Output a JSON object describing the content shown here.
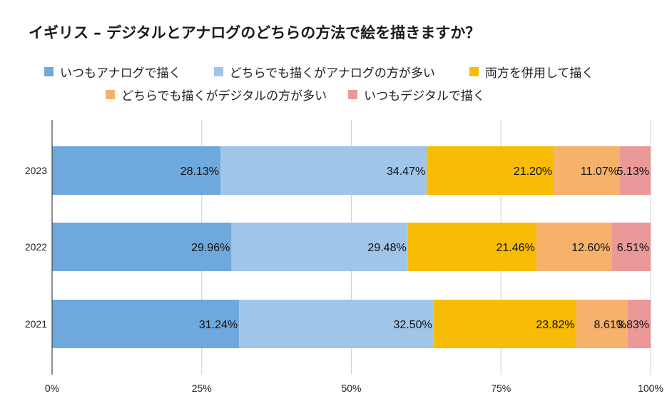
{
  "chart_data": {
    "type": "bar",
    "orientation": "horizontal",
    "stacked": "percent",
    "title": "イギリス – デジタルとアナログのどちらの方法で絵を描きますか？",
    "categories": [
      "2023",
      "2022",
      "2021"
    ],
    "series": [
      {
        "name": "いつもアナログで描く",
        "color": "#6fa8dc",
        "values": [
          28.13,
          29.96,
          31.24
        ],
        "labels": [
          "28.13%",
          "29.96%",
          "31.24%"
        ]
      },
      {
        "name": "どちらでも描くがアナログの方が多い",
        "color": "#9fc5e8",
        "values": [
          34.47,
          29.48,
          32.5
        ],
        "labels": [
          "34.47%",
          "29.48%",
          "32.50%"
        ]
      },
      {
        "name": "両方を併用して描く",
        "color": "#f9bc04",
        "values": [
          21.2,
          21.46,
          23.82
        ],
        "labels": [
          "21.20%",
          "21.46%",
          "23.82%"
        ]
      },
      {
        "name": "どちらでも描くがデジタルの方が多い",
        "color": "#f6b26b",
        "values": [
          11.07,
          12.6,
          8.61
        ],
        "labels": [
          "11.07%",
          "12.60%",
          "8.61%"
        ]
      },
      {
        "name": "いつもデジタルで描く",
        "color": "#ea9999",
        "values": [
          5.13,
          6.51,
          3.83
        ],
        "labels": [
          "5.13%",
          "6.51%",
          "3.83%"
        ]
      }
    ],
    "xlim": [
      0,
      100
    ],
    "xticks": [
      "0%",
      "25%",
      "50%",
      "75%",
      "100%"
    ],
    "grid": true,
    "legend": "top"
  }
}
